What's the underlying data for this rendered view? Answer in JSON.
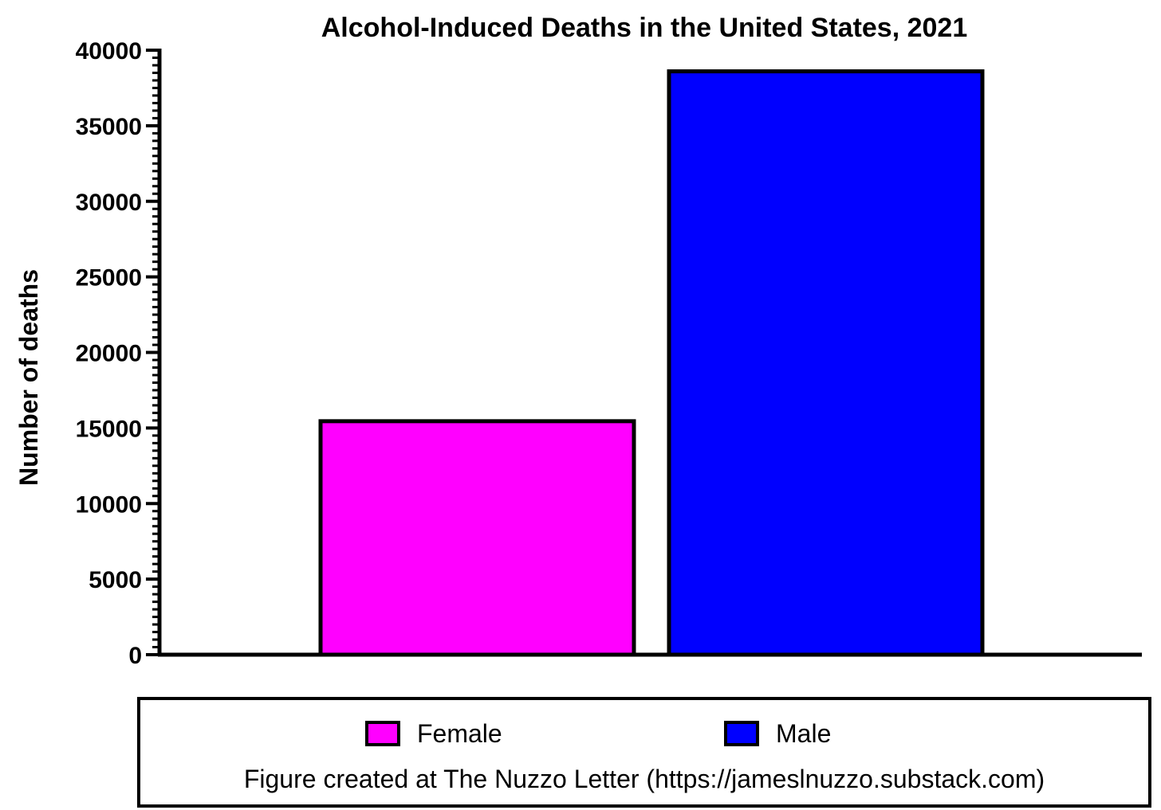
{
  "chart_data": {
    "type": "bar",
    "title": "Alcohol-Induced Deaths in the United States, 2021",
    "xlabel": "",
    "ylabel": "Number of deaths",
    "ylim": [
      0,
      40000
    ],
    "yticks": [
      0,
      5000,
      10000,
      15000,
      20000,
      25000,
      30000,
      35000,
      40000
    ],
    "minor_ticks_per_major": 10,
    "categories": [
      "Female",
      "Male"
    ],
    "values": [
      15450,
      38600
    ],
    "colors": [
      "#ff00ff",
      "#0000ff"
    ],
    "grid": false,
    "legend_position": "bottom",
    "legend": [
      {
        "label": "Female",
        "color": "#ff00ff"
      },
      {
        "label": "Male",
        "color": "#0000ff"
      }
    ]
  },
  "credit": "Figure created at The Nuzzo Letter (https://jameslnuzzo.substack.com)"
}
